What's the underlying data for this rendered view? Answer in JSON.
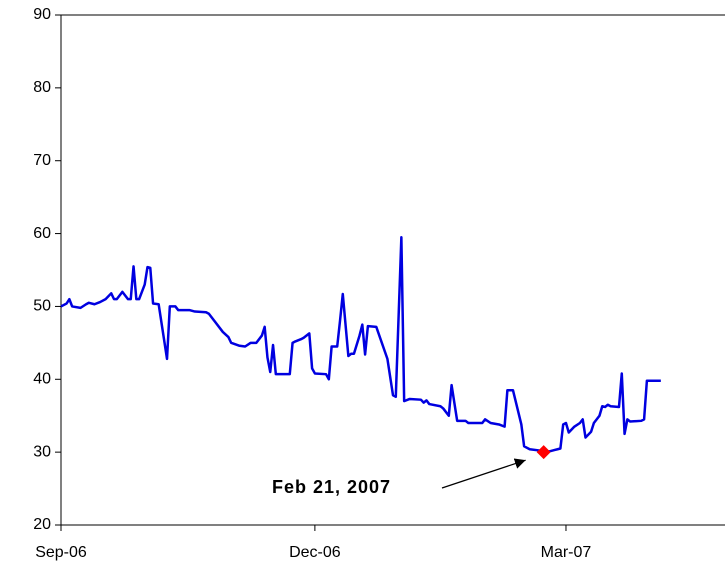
{
  "chart_data": {
    "type": "line",
    "x": [
      0,
      2,
      3,
      4,
      7,
      9,
      10,
      12,
      14,
      16,
      18,
      19,
      20,
      22,
      24,
      25,
      26,
      27,
      28,
      30,
      31,
      32,
      33,
      35,
      38,
      39,
      41,
      42,
      46,
      48,
      52,
      53,
      55,
      58,
      60,
      61,
      64,
      66,
      68,
      70,
      72,
      73,
      74,
      75,
      76,
      77,
      82,
      83,
      84,
      86,
      87,
      89,
      90,
      91,
      95,
      96,
      97,
      99,
      100,
      101,
      103,
      104,
      105,
      107,
      108,
      109,
      110,
      113,
      117,
      119,
      120,
      122,
      123,
      125,
      129,
      130,
      131,
      132,
      136,
      137,
      139,
      140,
      142,
      145,
      146,
      148,
      151,
      152,
      154,
      157,
      159,
      160,
      162,
      165,
      166,
      168,
      172,
      173,
      175,
      177,
      178,
      179,
      180,
      181,
      182,
      184,
      186,
      187,
      188,
      190,
      191,
      193,
      194,
      195,
      196,
      197,
      200,
      201,
      202,
      203,
      204,
      208,
      209,
      210,
      213,
      215
    ],
    "series": [
      {
        "color": "#0000e0",
        "values": [
          50,
          50.4,
          51,
          50,
          49.8,
          50.3,
          50.5,
          50.3,
          50.6,
          51,
          51.8,
          51,
          51,
          52,
          51,
          51,
          55.5,
          51,
          51,
          53,
          55.4,
          55.3,
          50.4,
          50.3,
          42.8,
          50,
          50,
          49.5,
          49.5,
          49.3,
          49.2,
          49,
          48,
          46.5,
          45.8,
          45,
          44.6,
          44.5,
          45,
          45,
          46,
          47.2,
          43,
          41,
          44.7,
          40.7,
          40.7,
          45,
          45.2,
          45.5,
          45.7,
          46.3,
          41.5,
          40.8,
          40.7,
          40,
          44.5,
          44.5,
          48,
          51.7,
          43.2,
          43.5,
          43.5,
          46,
          47.5,
          43.4,
          47.3,
          47.2,
          42.8,
          37.8,
          37.6,
          59.5,
          37,
          37.3,
          37.2,
          36.8,
          37.1,
          36.6,
          36.3,
          36,
          35,
          39.2,
          34.3,
          34.3,
          34,
          34,
          34,
          34.5,
          34,
          33.8,
          33.5,
          38.5,
          38.5,
          33.8,
          30.8,
          30.4,
          30.2,
          30,
          30.1,
          30.3,
          30.4,
          30.5,
          33.8,
          34,
          32.7,
          33.5,
          34,
          34.5,
          32,
          32.8,
          34,
          35,
          36.3,
          36.2,
          36.5,
          36.3,
          36.2,
          40.8,
          32.5,
          34.5,
          34.2,
          34.3,
          34.5,
          39.8,
          39.8,
          39.8
        ]
      }
    ],
    "highlight": {
      "x": 173,
      "y": 30,
      "color": "#ff0000"
    },
    "annotation": "Feb 21, 2007",
    "xlim": [
      0,
      238
    ],
    "xticks": [
      {
        "value": 0,
        "label": "Sep-06"
      },
      {
        "value": 91,
        "label": "Dec-06"
      },
      {
        "value": 181,
        "label": "Mar-07"
      }
    ],
    "ylim": [
      20,
      90
    ],
    "yticks": [
      20,
      30,
      40,
      50,
      60,
      70,
      80,
      90
    ]
  }
}
